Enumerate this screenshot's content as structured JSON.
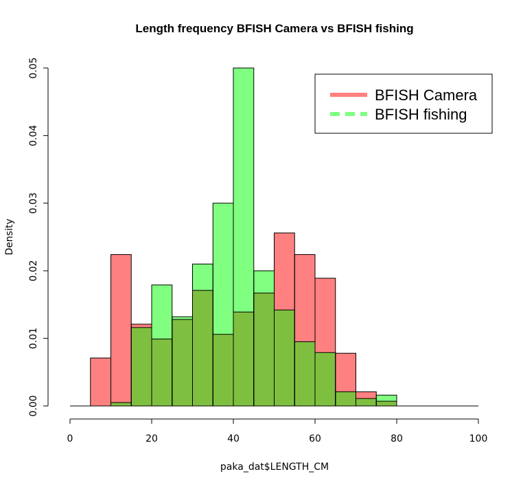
{
  "chart_data": {
    "type": "bar",
    "title": "Length frequency BFISH Camera vs BFISH fishing",
    "xlabel": "paka_dat$LENGTH_CM",
    "ylabel": "Density",
    "xlim": [
      0,
      100
    ],
    "ylim": [
      0,
      0.05
    ],
    "x_ticks": [
      "0",
      "20",
      "40",
      "60",
      "80",
      "100"
    ],
    "y_ticks": [
      "0.00",
      "0.01",
      "0.02",
      "0.03",
      "0.04",
      "0.05"
    ],
    "bin_edges": [
      5,
      10,
      15,
      20,
      25,
      30,
      35,
      40,
      45,
      50,
      55,
      60,
      65,
      70,
      75,
      80
    ],
    "series": [
      {
        "name": "BFISH Camera",
        "color": "#ff8080",
        "values": [
          0.0071,
          0.0224,
          0.0121,
          0.0099,
          0.0128,
          0.0171,
          0.0106,
          0.0139,
          0.0167,
          0.0256,
          0.0224,
          0.0189,
          0.0078,
          0.0021,
          0.0007
        ]
      },
      {
        "name": "BFISH fishing",
        "color": "#80ff80",
        "values": [
          0.0,
          0.0005,
          0.0116,
          0.0179,
          0.0132,
          0.021,
          0.03,
          0.05,
          0.02,
          0.0142,
          0.0095,
          0.0079,
          0.0021,
          0.0011,
          0.0016
        ]
      }
    ],
    "overlap_color": "#7fbf40",
    "legend": {
      "placement": "top-right",
      "entries": [
        "BFISH Camera",
        "BFISH fishing"
      ],
      "line_styles": [
        "solid",
        "dashed"
      ]
    }
  }
}
